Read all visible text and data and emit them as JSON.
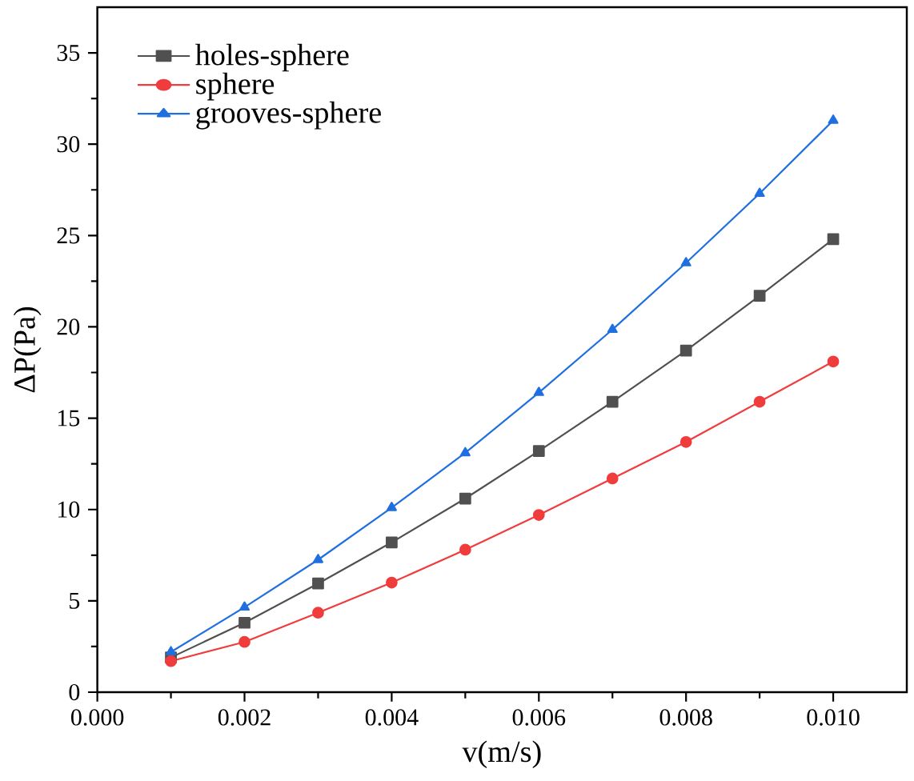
{
  "chart_data": {
    "type": "line",
    "xlabel": "v(m/s)",
    "ylabel": "ΔP(Pa)",
    "x": [
      0.001,
      0.002,
      0.003,
      0.004,
      0.005,
      0.006,
      0.007,
      0.008,
      0.009,
      0.01
    ],
    "series": [
      {
        "name": "holes-sphere",
        "color": "#505050",
        "marker": "square",
        "values": [
          1.9,
          3.8,
          5.95,
          8.2,
          10.6,
          13.2,
          15.9,
          18.7,
          21.7,
          24.8
        ]
      },
      {
        "name": "sphere",
        "color": "#f03c3c",
        "marker": "circle",
        "values": [
          1.7,
          2.75,
          4.35,
          6.0,
          7.8,
          9.7,
          11.7,
          13.7,
          15.9,
          18.1
        ]
      },
      {
        "name": "grooves-sphere",
        "color": "#1f6fe0",
        "marker": "triangle",
        "values": [
          2.2,
          4.65,
          7.25,
          10.1,
          13.1,
          16.4,
          19.85,
          23.5,
          27.3,
          31.3
        ]
      }
    ],
    "xlim": [
      0,
      0.011
    ],
    "ylim": [
      0,
      37.5
    ],
    "xticks": [
      {
        "value": 0,
        "label": "0.000"
      },
      {
        "value": 0.002,
        "label": "0.002"
      },
      {
        "value": 0.004,
        "label": "0.004"
      },
      {
        "value": 0.006,
        "label": "0.006"
      },
      {
        "value": 0.008,
        "label": "0.008"
      },
      {
        "value": 0.01,
        "label": "0.010"
      }
    ],
    "yticks": [
      0,
      5,
      10,
      15,
      20,
      25,
      30,
      35
    ],
    "legend": "top left",
    "grid": false,
    "line_style": "solid"
  }
}
